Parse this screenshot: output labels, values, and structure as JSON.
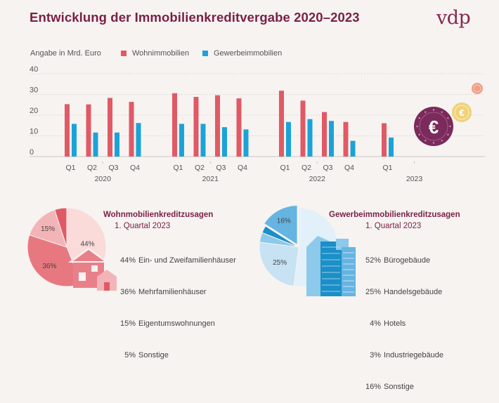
{
  "title": "Entwicklung der Immobilienkreditvergabe 2020–2023",
  "logo_text": "vdp",
  "subtitle": "Angabe in Mrd. Euro",
  "colors": {
    "residential": "#e05a66",
    "commercial": "#1ba3d8",
    "title": "#7a1f45"
  },
  "chart_data": [
    {
      "type": "bar",
      "title": "Entwicklung der Immobilienkreditvergabe 2020–2023",
      "ylabel": "Angabe in Mrd. Euro",
      "ylim": [
        0,
        40
      ],
      "yticks": [
        0,
        10,
        20,
        30,
        40
      ],
      "grid": true,
      "legend": "top",
      "categories": [
        "Q1",
        "Q2",
        "Q3",
        "Q4",
        "Q1",
        "Q2",
        "Q3",
        "Q4",
        "Q1",
        "Q2",
        "Q3",
        "Q4",
        "Q1"
      ],
      "groups": [
        {
          "label": "2020",
          "quarters": [
            "Q1",
            "Q2",
            "Q3",
            "Q4"
          ]
        },
        {
          "label": "2021",
          "quarters": [
            "Q1",
            "Q2",
            "Q3",
            "Q4"
          ]
        },
        {
          "label": "2022",
          "quarters": [
            "Q1",
            "Q2",
            "Q3",
            "Q4"
          ]
        },
        {
          "label": "2023",
          "quarters": [
            "Q1"
          ]
        }
      ],
      "series": [
        {
          "name": "Wohnimmobilien",
          "color": "#e05a66",
          "values": [
            25.3,
            25.2,
            28.3,
            26.4,
            30.6,
            28.8,
            29.6,
            28.1,
            31.8,
            27.0,
            21.5,
            16.7,
            16.1
          ]
        },
        {
          "name": "Gewerbeimmobilien",
          "color": "#1ba3d8",
          "values": [
            15.8,
            11.6,
            11.6,
            16.2,
            15.8,
            15.8,
            14.2,
            13.1,
            16.7,
            18.1,
            17.2,
            7.6,
            9.2
          ]
        }
      ]
    },
    {
      "type": "pie",
      "title": "Wohnmobilienkreditzusagen",
      "subtitle": "1. Quartal 2023",
      "labels": [
        "Ein- und Zweifamilienhäuser",
        "Mehrfamilienhäuser",
        "Eigentumswohnungen",
        "Sonstige"
      ],
      "values": [
        44,
        36,
        15,
        5
      ],
      "display": [
        "44%",
        "36%",
        "15%",
        "5%"
      ],
      "colors": [
        "#fbdada",
        "#e87880",
        "#f3b4b7",
        "#e05a66"
      ]
    },
    {
      "type": "pie",
      "title": "Gewerbeimmobilienkreditzusagen",
      "subtitle": "1. Quartal 2023",
      "labels": [
        "Bürogebäude",
        "Handelsgebäude",
        "Hotels",
        "Industriegebäude",
        "Sonstige"
      ],
      "values": [
        52,
        25,
        4,
        3,
        16
      ],
      "display": [
        "52%",
        "25%",
        "4%",
        "3%",
        "16%"
      ],
      "colors": [
        "#e2f0f9",
        "#c6e2f3",
        "#8cc9ea",
        "#1b8fc7",
        "#66b4e2"
      ]
    }
  ]
}
